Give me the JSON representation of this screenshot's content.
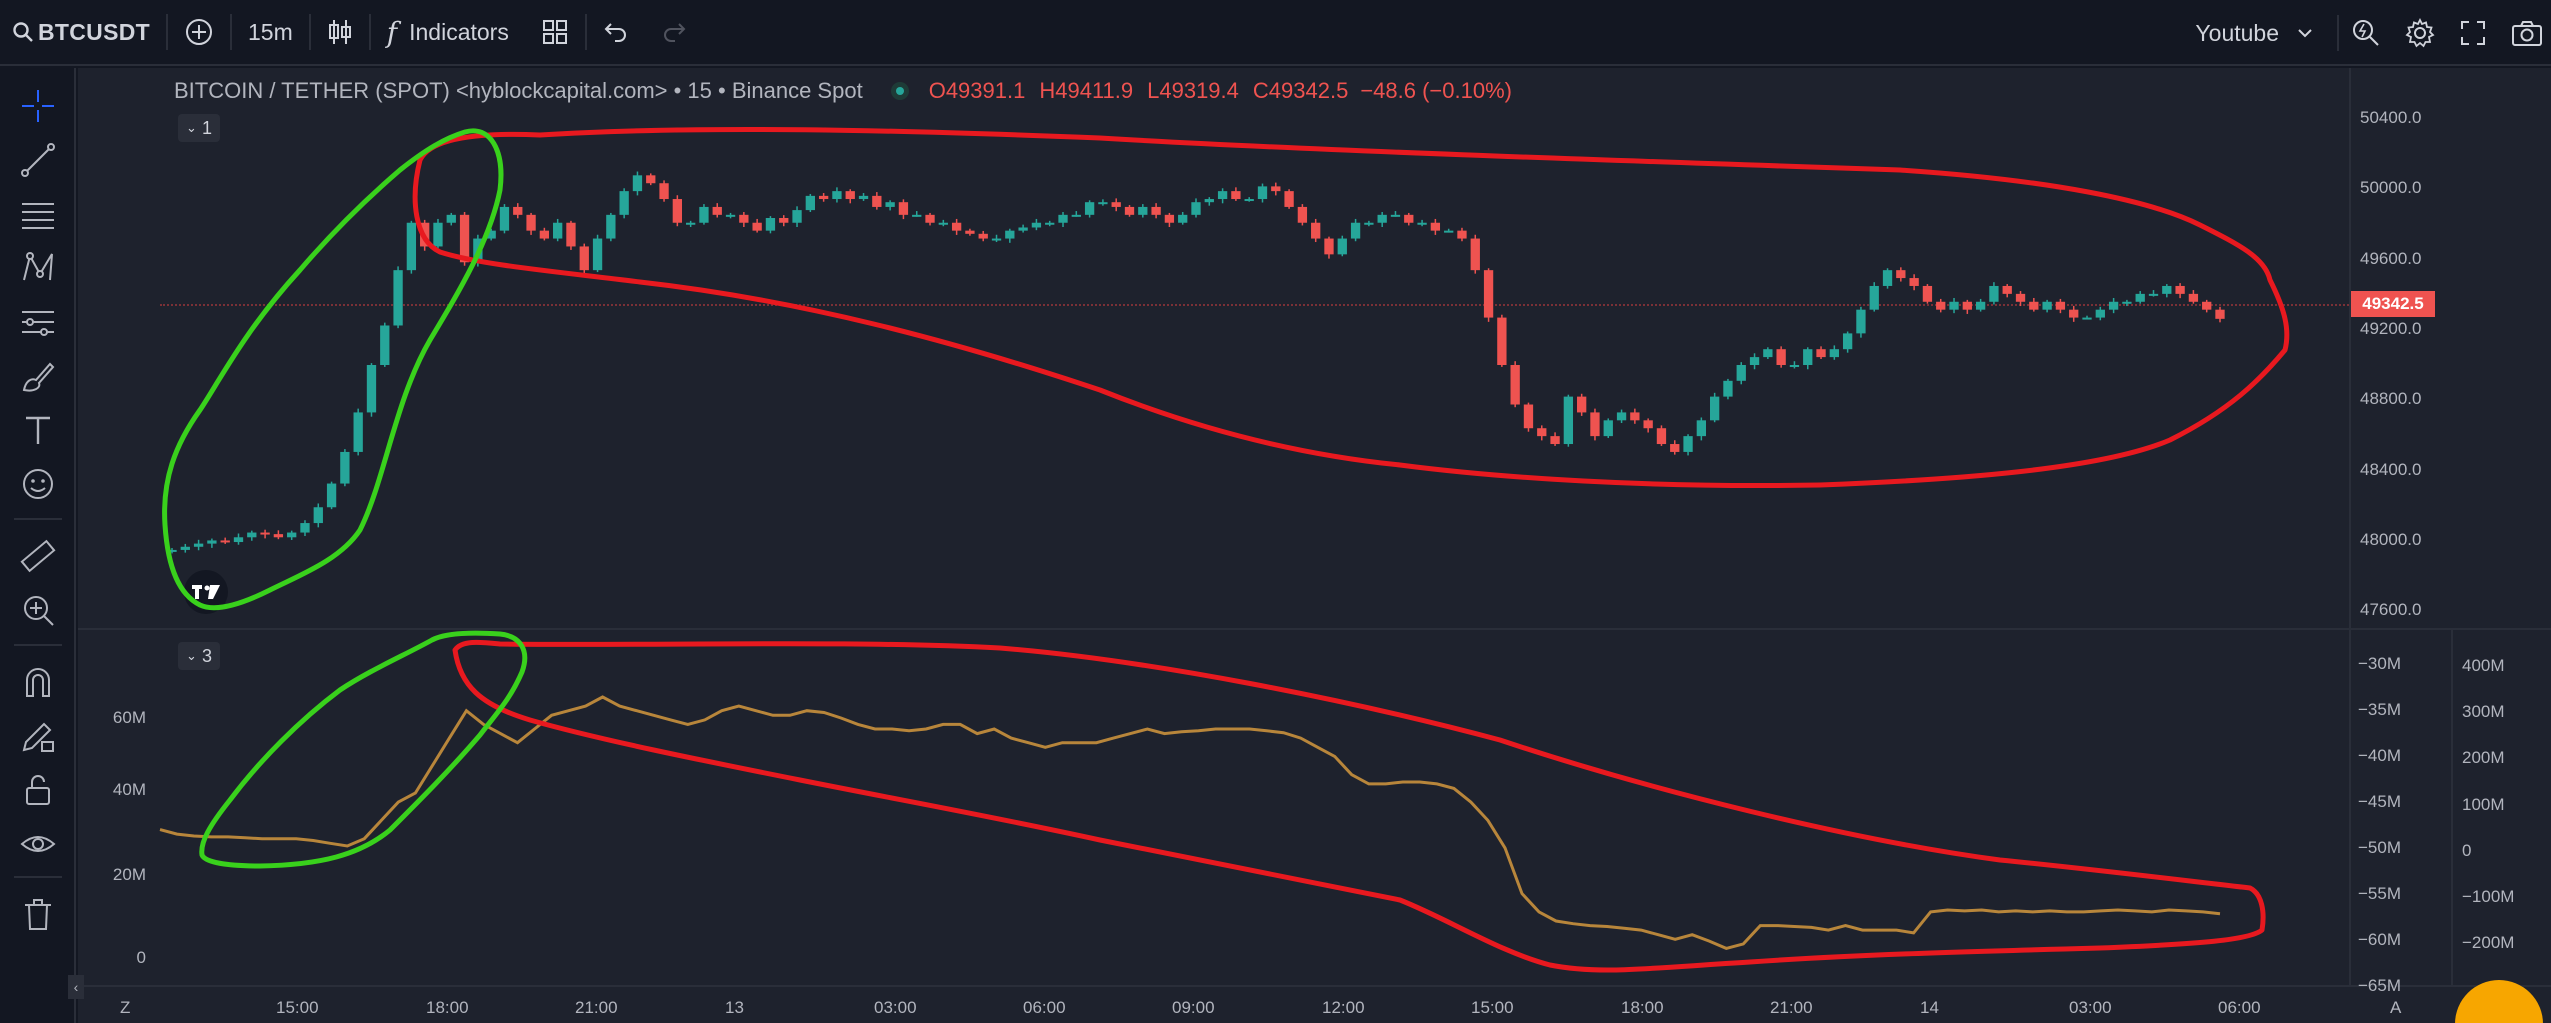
{
  "toolbar": {
    "symbol": "BTCUSDT",
    "interval": "15m",
    "indicators_label": "Indicators",
    "layout_name": "Youtube"
  },
  "legend": {
    "title": "BITCOIN / TETHER (SPOT) <hyblockcapital.com> • 15 • Binance Spot",
    "open": "O49391.1",
    "high": "H49411.9",
    "low": "L49319.4",
    "close": "C49342.5",
    "change": "−48.6 (−0.10%)"
  },
  "panes": {
    "main_tag": "1",
    "indicator_tag": "3"
  },
  "price_axis": [
    "50400.0",
    "50000.0",
    "49600.0",
    "49200.0",
    "48800.0",
    "48400.0",
    "48000.0",
    "47600.0"
  ],
  "last_price": "49342.5",
  "indicator_left_axis": [
    "60M",
    "40M",
    "20M",
    "0"
  ],
  "indicator_mid_axis": [
    "−30M",
    "−35M",
    "−40M",
    "−45M",
    "−50M",
    "−55M",
    "−60M",
    "−65M"
  ],
  "indicator_right_axis": [
    "400M",
    "300M",
    "200M",
    "100M",
    "0",
    "−100M",
    "−200M"
  ],
  "time_axis": [
    "15:00",
    "18:00",
    "21:00",
    "13",
    "03:00",
    "06:00",
    "09:00",
    "12:00",
    "15:00",
    "18:00",
    "21:00",
    "14",
    "03:00",
    "06:00"
  ],
  "time_axis_corner_left": "Z",
  "time_axis_corner_right": "A",
  "colors": {
    "up": "#26a69a",
    "down": "#ef5350",
    "line": "#b8863b",
    "annotation_red": "#e8191f",
    "annotation_green": "#39d11c"
  },
  "chart_data": {
    "type": "candlestick",
    "title": "BITCOIN / TETHER (SPOT) <hyblockcapital.com> • 15 • Binance Spot",
    "ylim": [
      47500,
      50600
    ],
    "x_labels": [
      "15:00",
      "18:00",
      "21:00",
      "13",
      "03:00",
      "06:00",
      "09:00",
      "12:00",
      "15:00",
      "18:00",
      "21:00",
      "14",
      "03:00",
      "06:00"
    ],
    "closes": [
      47880,
      47900,
      47920,
      47940,
      47930,
      47960,
      47990,
      47980,
      47960,
      47990,
      48050,
      48150,
      48300,
      48500,
      48750,
      49050,
      49300,
      49650,
      49950,
      49800,
      49950,
      50000,
      49700,
      49850,
      49900,
      50050,
      50000,
      49900,
      49850,
      49950,
      49800,
      49650,
      49850,
      50000,
      50150,
      50250,
      50200,
      50100,
      49950,
      49950,
      50050,
      50000,
      50000,
      49950,
      49900,
      49980,
      49950,
      50030,
      50120,
      50100,
      50150,
      50100,
      50120,
      50050,
      50080,
      50000,
      50000,
      49950,
      49950,
      49900,
      49880,
      49850,
      49850,
      49900,
      49920,
      49950,
      49950,
      50000,
      50000,
      50080,
      50080,
      50050,
      50000,
      50050,
      50000,
      49950,
      50000,
      50080,
      50100,
      50150,
      50100,
      50100,
      50180,
      50150,
      50050,
      49950,
      49850,
      49750,
      49850,
      49950,
      49950,
      50000,
      50000,
      49950,
      49950,
      49900,
      49900,
      49850,
      49650,
      49350,
      49050,
      48800,
      48650,
      48600,
      48550,
      48850,
      48750,
      48600,
      48700,
      48750,
      48700,
      48650,
      48550,
      48500,
      48600,
      48700,
      48850,
      48950,
      49050,
      49100,
      49150,
      49050,
      49050,
      49150,
      49100,
      49150,
      49250,
      49400,
      49550,
      49650,
      49600,
      49550,
      49450,
      49400,
      49450,
      49400,
      49450,
      49550,
      49500,
      49450,
      49400,
      49450,
      49400,
      49350,
      49350,
      49400,
      49450,
      49450,
      49500,
      49500,
      49550,
      49500,
      49450,
      49400,
      49342
    ],
    "indicator": {
      "type": "line",
      "ylim": [
        -65,
        -30
      ],
      "values": [
        -48,
        -48.5,
        -48.7,
        -48.8,
        -48.8,
        -48.9,
        -49,
        -49,
        -49,
        -49.2,
        -49.5,
        -49.8,
        -49,
        -47,
        -45,
        -44,
        -41,
        -38,
        -35,
        -36.5,
        -37.5,
        -38.5,
        -37,
        -35.5,
        -35,
        -34.5,
        -33.5,
        -34.5,
        -35,
        -35.5,
        -36,
        -36.5,
        -36,
        -35,
        -34.5,
        -35,
        -35.5,
        -35.5,
        -35,
        -35.2,
        -35.8,
        -36.5,
        -37,
        -37,
        -37.2,
        -37,
        -36.5,
        -36.5,
        -37.5,
        -37,
        -38,
        -38.5,
        -39,
        -38.5,
        -38.5,
        -38.5,
        -38,
        -37.5,
        -37,
        -37.5,
        -37.3,
        -37.2,
        -37,
        -37,
        -37,
        -37.2,
        -37.4,
        -38,
        -39,
        -40,
        -42,
        -43,
        -43,
        -42.8,
        -42.8,
        -43,
        -43.5,
        -45,
        -47,
        -50,
        -55,
        -57,
        -58,
        -58.3,
        -58.5,
        -58.6,
        -58.8,
        -59,
        -59.5,
        -60,
        -59.5,
        -60.2,
        -61,
        -60.5,
        -58.5,
        -58.5,
        -58.6,
        -58.7,
        -59,
        -58.5,
        -59,
        -59,
        -59,
        -59.3,
        -57,
        -56.8,
        -56.9,
        -56.8,
        -57,
        -56.9,
        -57,
        -56.9,
        -57,
        -57,
        -56.9,
        -56.8,
        -56.9,
        -57,
        -56.8,
        -56.9,
        -57,
        -57.2
      ]
    }
  }
}
